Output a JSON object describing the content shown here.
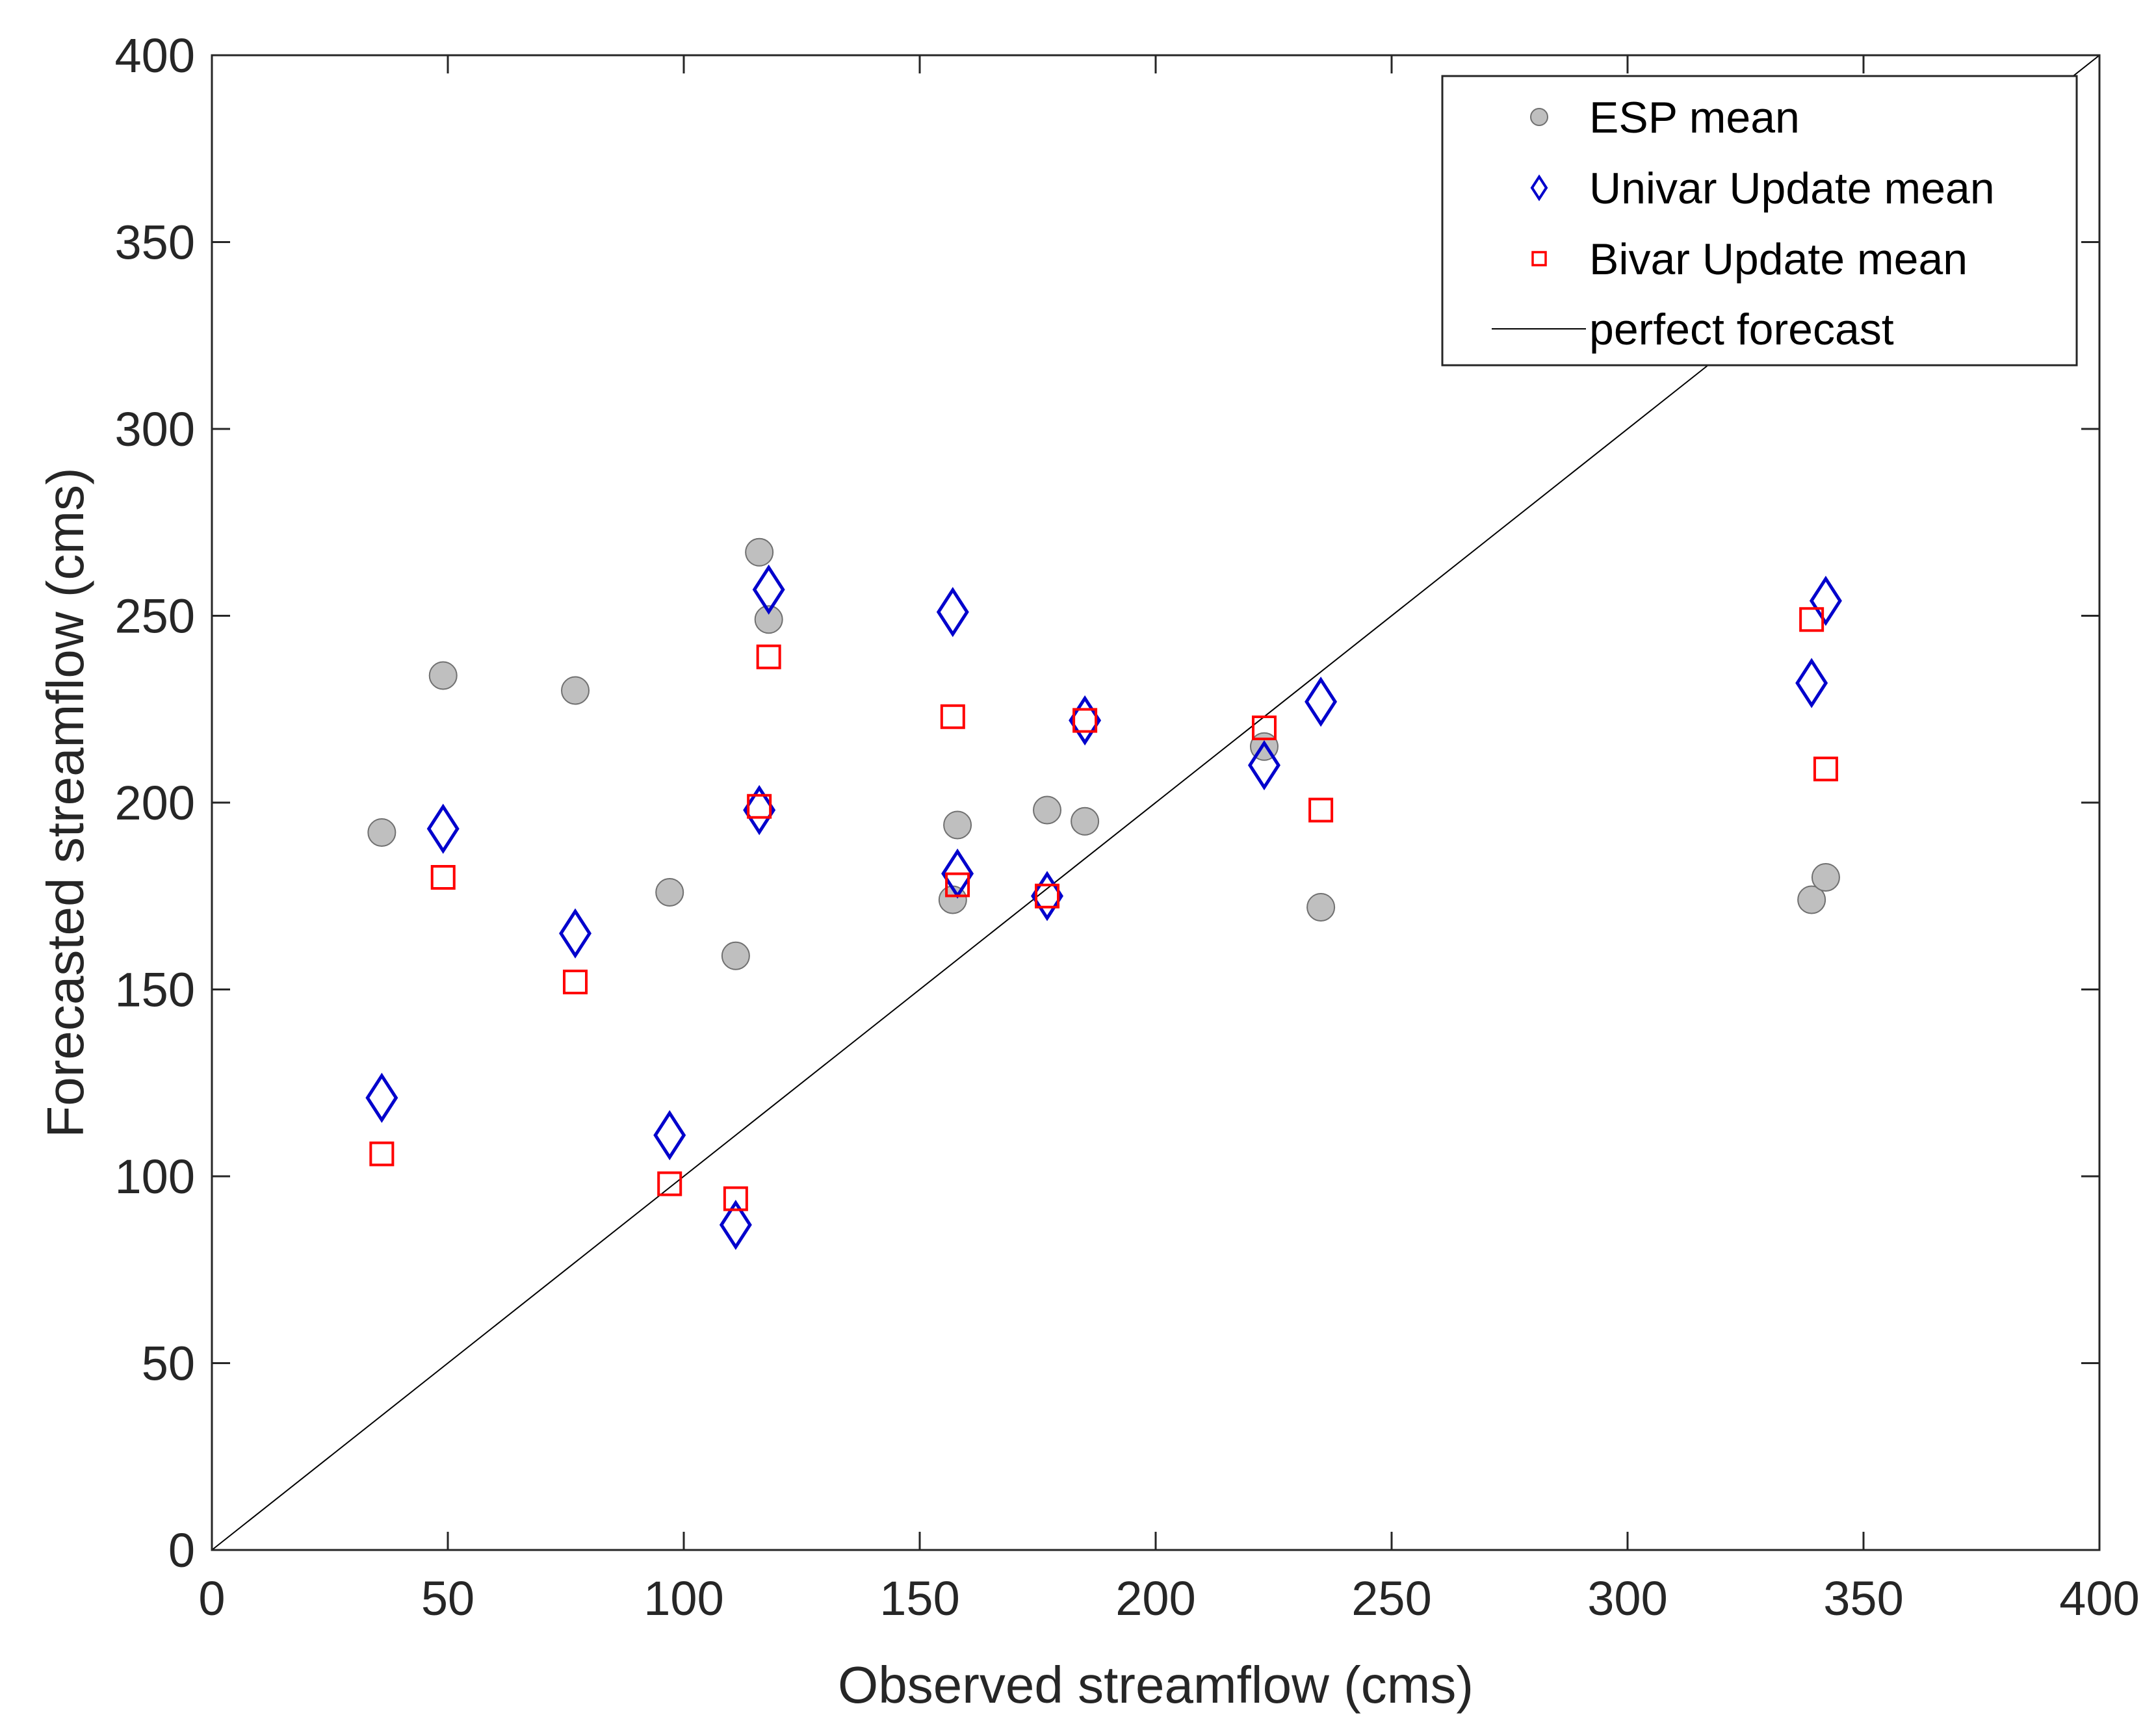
{
  "colors": {
    "esp_fill": "#bfbfbf",
    "esp_edge": "#707070",
    "univar": "#0000cc",
    "bivar": "#ff0000",
    "line": "#000000",
    "axes": "#262626"
  },
  "chart_data": {
    "type": "scatter",
    "title": "",
    "xlabel": "Observed streamflow (cms)",
    "ylabel": "Forecasted streamflow (cms)",
    "xlim": [
      0,
      400
    ],
    "ylim": [
      0,
      400
    ],
    "xticks": [
      0,
      50,
      100,
      150,
      200,
      250,
      300,
      350,
      400
    ],
    "yticks": [
      0,
      50,
      100,
      150,
      200,
      250,
      300,
      350,
      400
    ],
    "grid": false,
    "legend_position": "top-right",
    "series": [
      {
        "name": "ESP mean",
        "marker": "circle",
        "points": [
          [
            36,
            192
          ],
          [
            49,
            234
          ],
          [
            77,
            230
          ],
          [
            97,
            176
          ],
          [
            111,
            159
          ],
          [
            116,
            267
          ],
          [
            118,
            249
          ],
          [
            157,
            174
          ],
          [
            158,
            194
          ],
          [
            177,
            198
          ],
          [
            185,
            195
          ],
          [
            223,
            215
          ],
          [
            235,
            172
          ],
          [
            339,
            174
          ],
          [
            342,
            180
          ]
        ]
      },
      {
        "name": "Univar Update mean",
        "marker": "diamond",
        "points": [
          [
            36,
            121
          ],
          [
            49,
            193
          ],
          [
            77,
            165
          ],
          [
            97,
            111
          ],
          [
            111,
            87
          ],
          [
            116,
            198
          ],
          [
            118,
            257
          ],
          [
            157,
            251
          ],
          [
            158,
            181
          ],
          [
            177,
            175
          ],
          [
            185,
            222
          ],
          [
            223,
            210
          ],
          [
            235,
            227
          ],
          [
            339,
            232
          ],
          [
            342,
            254
          ]
        ]
      },
      {
        "name": "Bivar Update mean",
        "marker": "square",
        "points": [
          [
            36,
            106
          ],
          [
            49,
            180
          ],
          [
            77,
            152
          ],
          [
            97,
            98
          ],
          [
            111,
            94
          ],
          [
            116,
            199
          ],
          [
            118,
            239
          ],
          [
            157,
            223
          ],
          [
            158,
            178
          ],
          [
            177,
            175
          ],
          [
            185,
            222
          ],
          [
            223,
            220
          ],
          [
            235,
            198
          ],
          [
            339,
            249
          ],
          [
            342,
            209
          ]
        ]
      },
      {
        "name": "perfect forecast",
        "marker": "line",
        "points": [
          [
            0,
            0
          ],
          [
            400,
            400
          ]
        ]
      }
    ]
  }
}
